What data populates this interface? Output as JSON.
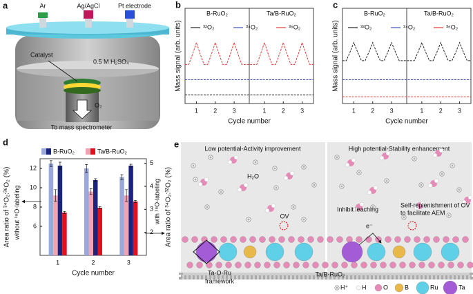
{
  "chart_data": [
    {
      "type": "line",
      "label": "b",
      "y_label": "Mass signal (arb. units)",
      "x_label": "Cycle number",
      "sections": [
        "B-RuO₂",
        "Ta/B-RuO₂"
      ],
      "x": [
        0.4,
        0.6,
        0.8,
        1.0,
        1.2,
        1.4,
        1.6,
        1.8,
        2.0,
        2.2,
        2.4,
        2.6,
        2.8,
        3.0,
        3.2,
        3.4,
        3.6,
        3.9,
        4.2,
        4.4,
        4.6,
        4.8,
        5.0,
        5.2,
        5.4,
        5.6,
        5.8,
        6.0,
        6.2,
        6.4,
        6.6,
        6.8,
        7.0,
        7.2
      ],
      "xlim": [
        0.4,
        7.2
      ],
      "xticks": [
        1,
        2,
        3,
        {
          "value": 4.6,
          "label": "1"
        },
        {
          "value": 5.6,
          "label": "2"
        },
        {
          "value": 6.6,
          "label": "3"
        }
      ],
      "ylim": [
        0,
        10
      ],
      "series": [
        {
          "name": "³²O₂",
          "color": "#222222",
          "values": [
            0.9,
            0.9,
            0.9,
            0.9,
            0.9,
            0.9,
            0.9,
            0.9,
            0.9,
            0.9,
            0.9,
            0.9,
            0.9,
            0.9,
            0.9,
            0.9,
            0.9,
            0.9,
            0.9,
            0.9,
            0.9,
            0.9,
            0.9,
            0.9,
            0.9,
            0.9,
            0.9,
            0.9,
            0.9,
            0.9,
            0.9,
            0.9,
            0.9,
            0.9
          ]
        },
        {
          "name": "³⁴O₂",
          "color": "#3f51b5",
          "values": [
            2.5,
            2.5,
            2.5,
            2.5,
            2.5,
            2.5,
            2.5,
            2.5,
            2.5,
            2.5,
            2.5,
            2.5,
            2.5,
            2.5,
            2.5,
            2.5,
            2.5,
            2.5,
            2.5,
            2.5,
            2.5,
            2.5,
            2.5,
            2.5,
            2.5,
            2.5,
            2.5,
            2.5,
            2.5,
            2.5,
            2.5,
            2.5,
            2.5,
            2.5
          ]
        },
        {
          "name": "³⁶O₂",
          "color": "#e53935",
          "values": [
            4.1,
            4.1,
            5.2,
            6.4,
            5.2,
            4.1,
            4.1,
            5.2,
            6.4,
            5.2,
            4.1,
            4.1,
            5.2,
            6.4,
            5.2,
            4.1,
            4.1,
            4.1,
            4.1,
            5.2,
            6.4,
            5.2,
            4.1,
            4.1,
            5.2,
            6.4,
            5.2,
            4.1,
            4.1,
            5.2,
            6.4,
            5.2,
            4.1,
            4.1
          ]
        }
      ]
    },
    {
      "type": "line",
      "label": "c",
      "y_label": "Mass signal (arb. units)",
      "x_label": "Cycle number",
      "sections": [
        "B-RuO₂",
        "Ta/B-RuO₂"
      ],
      "x": [
        0.4,
        0.6,
        0.8,
        1.0,
        1.2,
        1.4,
        1.6,
        1.8,
        2.0,
        2.2,
        2.4,
        2.6,
        2.8,
        3.0,
        3.2,
        3.4,
        3.6,
        3.9,
        4.2,
        4.4,
        4.6,
        4.8,
        5.0,
        5.2,
        5.4,
        5.6,
        5.8,
        6.0,
        6.2,
        6.4,
        6.6,
        6.8,
        7.0,
        7.2
      ],
      "xlim": [
        0.4,
        7.2
      ],
      "xticks": [
        1,
        2,
        3,
        {
          "value": 4.6,
          "label": "1"
        },
        {
          "value": 5.6,
          "label": "2"
        },
        {
          "value": 6.6,
          "label": "3"
        }
      ],
      "ylim": [
        0,
        10
      ],
      "series": [
        {
          "name": "³²O₂",
          "color": "#222222",
          "values": [
            4.5,
            4.5,
            5.4,
            6.4,
            5.4,
            4.5,
            4.5,
            5.4,
            6.4,
            5.4,
            4.5,
            4.5,
            5.4,
            6.4,
            5.4,
            4.5,
            4.5,
            4.5,
            4.5,
            5.4,
            6.4,
            5.4,
            4.5,
            4.5,
            5.4,
            6.4,
            5.4,
            4.5,
            4.5,
            5.4,
            6.4,
            5.4,
            4.5,
            4.5
          ]
        },
        {
          "name": "³⁴O₂",
          "color": "#3f51b5",
          "values": [
            2.5,
            2.5,
            2.5,
            2.5,
            2.5,
            2.5,
            2.5,
            2.5,
            2.5,
            2.5,
            2.5,
            2.5,
            2.5,
            2.5,
            2.5,
            2.5,
            2.5,
            2.5,
            2.5,
            2.5,
            2.5,
            2.5,
            2.5,
            2.5,
            2.5,
            2.5,
            2.5,
            2.5,
            2.5,
            2.5,
            2.5,
            2.5,
            2.5,
            2.5
          ]
        },
        {
          "name": "³⁶O₂",
          "color": "#e53935",
          "values": [
            0.7,
            0.7,
            0.7,
            0.7,
            0.7,
            0.7,
            0.7,
            0.7,
            0.7,
            0.7,
            0.7,
            0.7,
            0.7,
            0.7,
            0.7,
            0.7,
            0.7,
            0.7,
            0.7,
            0.7,
            0.7,
            0.7,
            0.7,
            0.7,
            0.7,
            0.7,
            0.7,
            0.7,
            0.7,
            0.7,
            0.7,
            0.7,
            0.7,
            0.7
          ]
        }
      ]
    },
    {
      "type": "bar",
      "label": "d",
      "x_label": "Cycle number",
      "y_label": "Area ratio of ³⁴O₂:³⁶O₂ (%)",
      "y2_label": "Area ratio of ³⁴O₂:³²O₂ (%)",
      "annotations": [
        "without ¹⁸O-labeling",
        "with ¹⁸O-labeling"
      ],
      "categories": [
        "1",
        "2",
        "3"
      ],
      "ylim": [
        3,
        13
      ],
      "yticks": [
        6,
        8,
        10,
        12
      ],
      "y2lim": [
        1,
        5.2
      ],
      "y2ticks": [
        2,
        3,
        4,
        5
      ],
      "series": [
        {
          "name": "B-RuO₂",
          "colors": [
            "#9aa8dc",
            "#1a237e"
          ],
          "values": [
            12.5,
            12.0,
            11.1
          ],
          "errors": [
            0.3,
            0.4,
            0.25
          ],
          "y2_values": [
            4.9,
            4.27,
            4.9
          ],
          "y2_errors": [
            0.15,
            0.06,
            0.06
          ]
        },
        {
          "name": "Ta/B-RuO₂",
          "colors": [
            "#f2a3b3",
            "#e01020"
          ],
          "values": [
            9.2,
            9.6,
            9.2
          ],
          "errors": [
            0.6,
            0.3,
            0.6
          ],
          "y2_values": [
            2.86,
            3.07,
            3.34
          ],
          "y2_errors": [
            0.05,
            0.05,
            0.05
          ]
        }
      ]
    }
  ],
  "panel_a": {
    "label": "a",
    "gases": [
      "Ar",
      "Ag/AgCl",
      "Pt electrode"
    ],
    "catalyst": "Catalyst",
    "electrolyte": "0.5 M H₂SO₄",
    "gas": "O₂",
    "outlet": "To mass spectrometer"
  },
  "panel_e": {
    "label": "e",
    "left_title": "Low potential-Activity improvement",
    "right_title": "High potential-Stability enhancement",
    "water": "H₂O",
    "vacancy": "OV",
    "framework": [
      "Ta-O-Ru",
      "framework"
    ],
    "leaching": "Inhibit leaching",
    "electron": "e⁻",
    "replenish": [
      "Self-replenishment of OV",
      "to facilitate AEM"
    ],
    "substrate": "Ta/B-RuO₂",
    "legend": [
      "H⁺",
      "H",
      "O",
      "B",
      "Ru",
      "Ta"
    ]
  }
}
